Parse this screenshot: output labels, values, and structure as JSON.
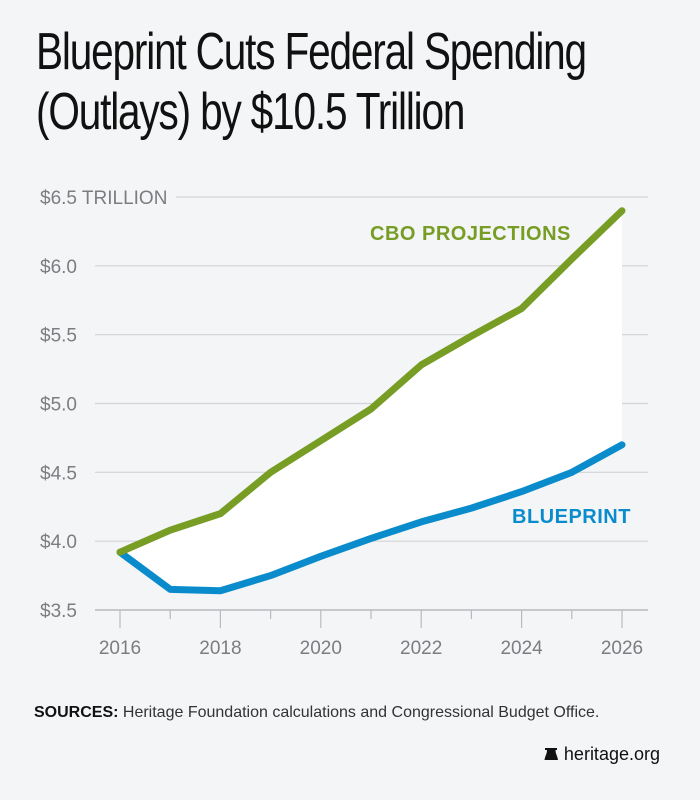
{
  "title_line1": "Blueprint Cuts Federal Spending",
  "title_line2": "(Outlays) by $10.5 Trillion",
  "sources_label": "SOURCES:",
  "sources_text": " Heritage Foundation calculations and Congressional Budget Office.",
  "site": "heritage.org",
  "colors": {
    "cbo": "#779d25",
    "blueprint": "#0a8ccc",
    "fill": "#ffffff",
    "grid": "#d3d4d6",
    "background": "#f4f5f7"
  },
  "chart_data": {
    "type": "line",
    "title": "Blueprint Cuts Federal Spending (Outlays) by $10.5 Trillion",
    "xlabel": "",
    "ylabel": "",
    "x": [
      2016,
      2017,
      2018,
      2019,
      2020,
      2021,
      2022,
      2023,
      2024,
      2025,
      2026
    ],
    "x_tick_labels": [
      "2016",
      "2018",
      "2020",
      "2022",
      "2024",
      "2026"
    ],
    "y_tick_values": [
      3.5,
      4.0,
      4.5,
      5.0,
      5.5,
      6.0,
      6.5
    ],
    "y_tick_labels": [
      "$3.5",
      "$4.0",
      "$4.5",
      "$5.0",
      "$5.5",
      "$6.0",
      "$6.5 TRILLION"
    ],
    "ylim": [
      3.5,
      6.5
    ],
    "xlim": [
      2016,
      2026
    ],
    "grid": true,
    "legend": "inline labels",
    "series": [
      {
        "name": "CBO PROJECTIONS",
        "color": "#779d25",
        "values": [
          3.92,
          4.08,
          4.2,
          4.5,
          4.73,
          4.96,
          5.28,
          5.49,
          5.69,
          6.05,
          6.4
        ]
      },
      {
        "name": "BLUEPRINT",
        "color": "#0a8ccc",
        "values": [
          3.92,
          3.65,
          3.64,
          3.75,
          3.89,
          4.02,
          4.14,
          4.24,
          4.36,
          4.5,
          4.7
        ]
      }
    ],
    "annotations": [
      "Shaded area between lines represents spending cut"
    ]
  }
}
